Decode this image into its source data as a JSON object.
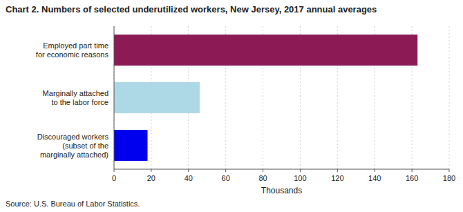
{
  "chart_data": {
    "type": "bar",
    "orientation": "horizontal",
    "title": "Chart 2. Numbers of selected underutilized workers, New Jersey, 2017 annual averages",
    "categories": [
      "Discouraged workers\n(subset of the\nmarginally attached)",
      "Marginally attached\nto the labor force",
      "Employed part time\nfor economic reasons"
    ],
    "values": [
      18,
      46,
      163
    ],
    "colors": [
      "#0000EE",
      "#ADD8E6",
      "#8B1A55"
    ],
    "x_label": "Thousands",
    "xlim": [
      0,
      180
    ],
    "xticks": [
      0,
      20,
      40,
      60,
      80,
      100,
      120,
      140,
      160,
      180
    ],
    "grid": true,
    "annotations": [
      "Source: U.S. Bureau of Labor Statistics."
    ]
  }
}
